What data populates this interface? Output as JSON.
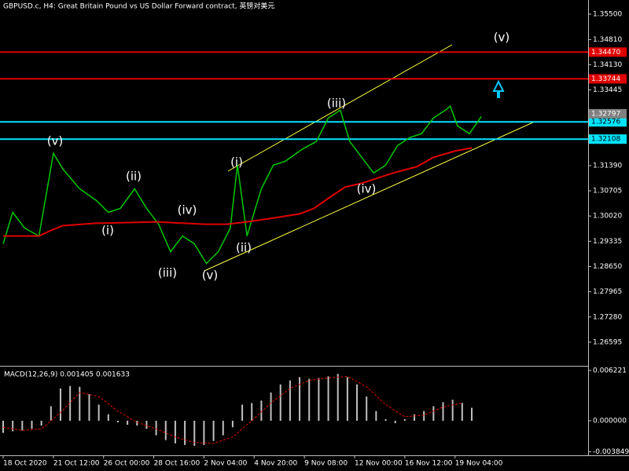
{
  "chart_data": [
    {
      "type": "line",
      "title": "GBPUSD.c, H4:  Great Britain Pound vs US Dollar Forward contract, 英镑对美元",
      "xlim": [
        0,
        245
      ],
      "ylim": [
        1.25954,
        1.35884
      ],
      "yticks": [
        {
          "value": 1.355,
          "label": "1.35500"
        },
        {
          "value": 1.3481,
          "label": "1.34810"
        },
        {
          "value": 1.3413,
          "label": "1.34130"
        },
        {
          "value": 1.33445,
          "label": "1.33445"
        },
        {
          "value": 1.3139,
          "label": "1.31390"
        },
        {
          "value": 1.30705,
          "label": "1.30705"
        },
        {
          "value": 1.3002,
          "label": "1.30020"
        },
        {
          "value": 1.29335,
          "label": "1.29335"
        },
        {
          "value": 1.2865,
          "label": "1.28650"
        },
        {
          "value": 1.27965,
          "label": "1.27965"
        },
        {
          "value": 1.2728,
          "label": "1.27280"
        },
        {
          "value": 1.26595,
          "label": "1.26595"
        }
      ],
      "xticks": [
        {
          "value": 0,
          "label": "18 Oct 2020"
        },
        {
          "value": 21,
          "label": "21 Oct 12:00"
        },
        {
          "value": 42,
          "label": "26 Oct 00:00"
        },
        {
          "value": 63,
          "label": "28 Oct 16:00"
        },
        {
          "value": 84,
          "label": "2 Nov 04:00"
        },
        {
          "value": 105,
          "label": "4 Nov 20:00"
        },
        {
          "value": 126,
          "label": "9 Nov 08:00"
        },
        {
          "value": 147,
          "label": "12 Nov 00:00"
        },
        {
          "value": 168,
          "label": "16 Nov 12:00"
        },
        {
          "value": 189,
          "label": "19 Nov 04:00"
        }
      ],
      "series": [
        {
          "color": "#00c800",
          "x": [
            0,
            4,
            9,
            15,
            21,
            25,
            32,
            39,
            44,
            49,
            55,
            60,
            65,
            70,
            75,
            80,
            85,
            90,
            95,
            98,
            102,
            105,
            108,
            113,
            118,
            125,
            131,
            136,
            141,
            145,
            150,
            155,
            160,
            165,
            170,
            175,
            180,
            185,
            187,
            190,
            195,
            200
          ],
          "values": [
            1.29265,
            1.30119,
            1.29692,
            1.29479,
            1.31721,
            1.31294,
            1.3076,
            1.3044,
            1.30119,
            1.30226,
            1.3076,
            1.30226,
            1.29799,
            1.29052,
            1.29479,
            1.29265,
            1.28732,
            1.29052,
            1.29692,
            1.31401,
            1.29479,
            1.30119,
            1.3076,
            1.31401,
            1.31507,
            1.31828,
            1.32041,
            1.32682,
            1.32895,
            1.32041,
            1.31614,
            1.31187,
            1.31401,
            1.31934,
            1.32148,
            1.32255,
            1.32682,
            1.32895,
            1.33002,
            1.32468,
            1.32255,
            1.32724
          ]
        },
        {
          "color": "#e00000",
          "x": [
            0,
            15,
            20,
            25,
            38,
            64,
            84,
            94,
            107,
            124,
            130,
            137,
            143,
            150,
            163,
            173,
            180,
            189,
            196
          ],
          "values": [
            1.29479,
            1.29479,
            1.29628,
            1.29757,
            1.29821,
            1.29863,
            1.29799,
            1.29799,
            1.29906,
            1.30077,
            1.30226,
            1.30546,
            1.30803,
            1.3091,
            1.31187,
            1.31358,
            1.31614,
            1.31785,
            1.3187
          ]
        }
      ],
      "levels": [
        {
          "value": 1.3447,
          "label": "1.34470",
          "color": "#e00000"
        },
        {
          "value": 1.33744,
          "label": "1.33744",
          "color": "#e00000"
        },
        {
          "value": 1.32576,
          "label": "1.32576",
          "color": "#00e5ff"
        },
        {
          "value": 1.32108,
          "label": "1.32108",
          "color": "#00e5ff"
        }
      ],
      "current_price": {
        "value": 1.32797,
        "label": "1.32797"
      },
      "wave_labels": [
        "(v)",
        "(i)",
        "(ii)",
        "(iii)",
        "(iv)",
        "(v)",
        "(i)",
        "(ii)",
        "(iii)",
        "(iv)",
        "(v)"
      ]
    },
    {
      "type": "bar",
      "title": "MACD(12,26,9) 0.001405 0.001633",
      "xlim": [
        0,
        245
      ],
      "ylim": [
        -0.004277,
        0.006804
      ],
      "yticks": [
        {
          "value": 0.006221,
          "label": "0.006221"
        },
        {
          "value": 0,
          "label": "0.000000"
        },
        {
          "value": -0.003849,
          "label": "-0.003849"
        }
      ],
      "x": [
        0,
        4,
        8,
        12,
        16,
        20,
        24,
        28,
        32,
        36,
        40,
        44,
        48,
        52,
        56,
        60,
        64,
        68,
        72,
        76,
        80,
        84,
        88,
        92,
        96,
        100,
        104,
        108,
        112,
        116,
        120,
        124,
        128,
        132,
        136,
        140,
        144,
        148,
        152,
        156,
        160,
        164,
        168,
        172,
        176,
        180,
        184,
        188,
        192,
        196
      ],
      "values": [
        -0.0015,
        -0.0013,
        -0.0012,
        -0.001,
        -0.0006,
        0.0018,
        0.004,
        0.0043,
        0.0042,
        0.0033,
        0.002,
        0.0008,
        -0.0002,
        -0.0005,
        -0.0006,
        -0.001,
        -0.0018,
        -0.0024,
        -0.0028,
        -0.003,
        -0.0031,
        -0.003,
        -0.0025,
        -0.0018,
        -0.0008,
        0.002,
        0.0022,
        0.0025,
        0.0035,
        0.0045,
        0.005,
        0.0054,
        0.0052,
        0.0053,
        0.0055,
        0.0058,
        0.0054,
        0.0045,
        0.003,
        0.0012,
        0.0002,
        -0.0003,
        0.0002,
        0.0008,
        0.0012,
        0.0018,
        0.0023,
        0.0026,
        0.0022,
        0.0016
      ],
      "color": "#c0c0c0",
      "signal": {
        "color": "#e00000",
        "x": [
          0,
          8,
          16,
          24,
          32,
          40,
          48,
          56,
          64,
          72,
          80,
          88,
          96,
          104,
          112,
          120,
          128,
          136,
          144,
          152,
          160,
          168,
          176,
          184,
          192
        ],
        "values": [
          -0.0008,
          -0.0012,
          -0.001,
          0.001,
          0.0035,
          0.003,
          0.0012,
          -0.0002,
          -0.001,
          -0.002,
          -0.0027,
          -0.0028,
          -0.002,
          0,
          0.0022,
          0.004,
          0.005,
          0.0053,
          0.0055,
          0.0042,
          0.002,
          0.0005,
          0.0007,
          0.0017,
          0.0022
        ]
      }
    }
  ]
}
